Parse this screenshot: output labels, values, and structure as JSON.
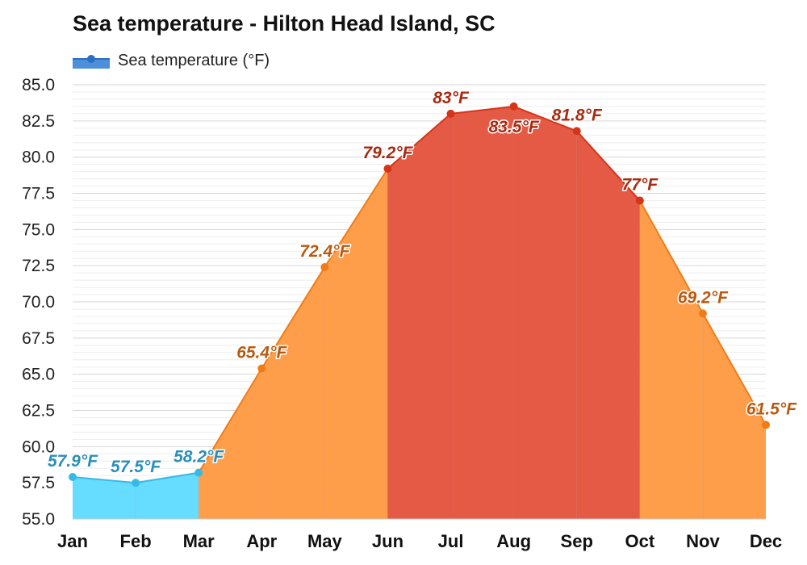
{
  "chart_data": {
    "type": "area",
    "title": "Sea temperature - Hilton Head Island, SC",
    "legend": {
      "placement": "top-left",
      "entries": [
        "Sea temperature (°F)"
      ]
    },
    "categories": [
      "Jan",
      "Feb",
      "Mar",
      "Apr",
      "May",
      "Jun",
      "Jul",
      "Aug",
      "Sep",
      "Oct",
      "Nov",
      "Dec"
    ],
    "series": [
      {
        "name": "Sea temperature (°F)",
        "values": [
          57.9,
          57.5,
          58.2,
          65.4,
          72.4,
          79.2,
          83,
          83.5,
          81.8,
          77,
          69.2,
          61.5
        ],
        "labels": [
          "57.9°F",
          "57.5°F",
          "58.2°F",
          "65.4°F",
          "72.4°F",
          "79.2°F",
          "83°F",
          "83.5°F",
          "81.8°F",
          "77°F",
          "69.2°F",
          "61.5°F"
        ]
      }
    ],
    "ylim": [
      55,
      85
    ],
    "yticks": [
      "55.0",
      "57.5",
      "60.0",
      "62.5",
      "65.0",
      "67.5",
      "70.0",
      "72.5",
      "75.0",
      "77.5",
      "80.0",
      "82.5",
      "85.0"
    ],
    "grid": true,
    "colors": {
      "cold_fill": "#66dcff",
      "cold_line": "#37b9e6",
      "cold_label": "#2a8fb8",
      "warm_fill": "#ff9e4a",
      "warm_line": "#f07c18",
      "warm_label": "#b85a10",
      "hot_fill": "#e55a45",
      "hot_line": "#d63418",
      "hot_label": "#a82a10"
    }
  }
}
